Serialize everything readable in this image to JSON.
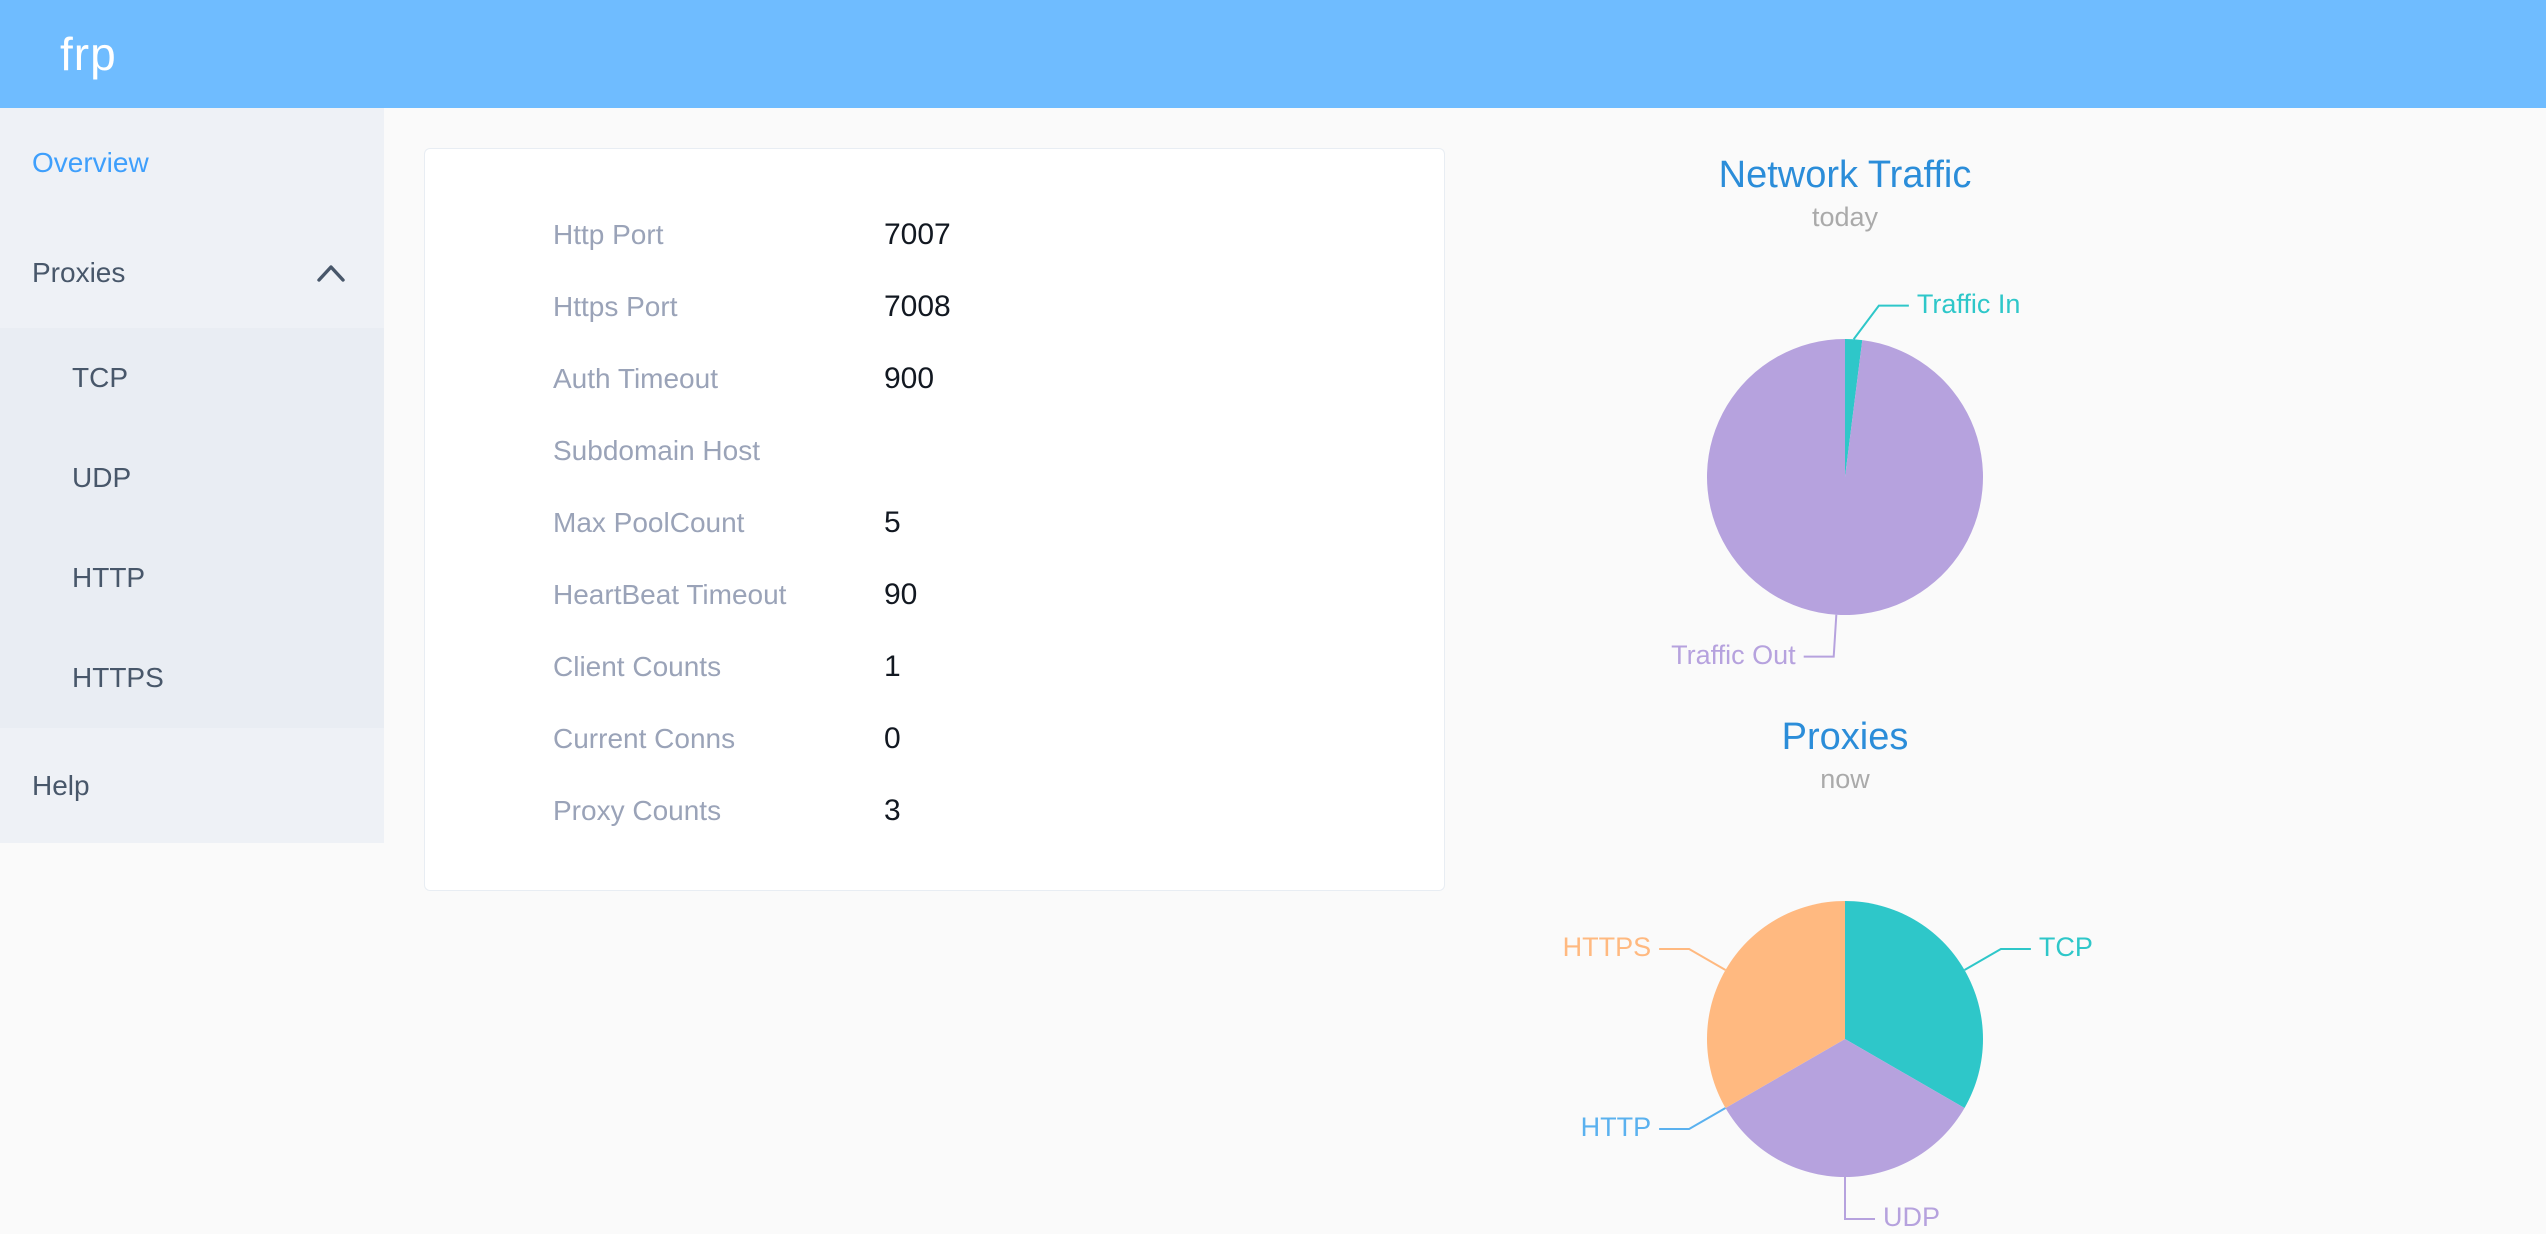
{
  "header": {
    "logo_text": "frp"
  },
  "sidebar": {
    "items": [
      {
        "id": "overview",
        "label": "Overview",
        "active": true
      },
      {
        "id": "proxies",
        "label": "Proxies",
        "expanded": true
      },
      {
        "id": "tcp",
        "label": "TCP"
      },
      {
        "id": "udp",
        "label": "UDP"
      },
      {
        "id": "http",
        "label": "HTTP"
      },
      {
        "id": "https",
        "label": "HTTPS"
      },
      {
        "id": "help",
        "label": "Help"
      }
    ]
  },
  "overview_panel": {
    "rows": [
      {
        "label": "Http Port",
        "value": "7007"
      },
      {
        "label": "Https Port",
        "value": "7008"
      },
      {
        "label": "Auth Timeout",
        "value": "900"
      },
      {
        "label": "Subdomain Host",
        "value": ""
      },
      {
        "label": "Max PoolCount",
        "value": "5"
      },
      {
        "label": "HeartBeat Timeout",
        "value": "90"
      },
      {
        "label": "Client Counts",
        "value": "1"
      },
      {
        "label": "Current Conns",
        "value": "0"
      },
      {
        "label": "Proxy Counts",
        "value": "3"
      }
    ]
  },
  "colors": {
    "header_bg": "#6fbcff",
    "sidebar_bg": "#eef1f6",
    "submenu_bg": "#e9edf3",
    "active_link": "#3e9ffc",
    "menu_text": "#48576a",
    "chart_title": "#2b8dd9",
    "chart_subtitle": "#aaaaaa"
  },
  "chart_data": [
    {
      "type": "pie",
      "title": "Network Traffic",
      "subtitle": "today",
      "legend_position": "callout-labels",
      "slices": [
        {
          "name": "Traffic In",
          "value": 2,
          "color": "#2ec7c9"
        },
        {
          "name": "Traffic Out",
          "value": 98,
          "color": "#b6a2de"
        }
      ]
    },
    {
      "type": "pie",
      "title": "Proxies",
      "subtitle": "now",
      "legend_position": "callout-labels",
      "slices": [
        {
          "name": "TCP",
          "value": 1,
          "color": "#2ec7c9"
        },
        {
          "name": "UDP",
          "value": 1,
          "color": "#b6a2de"
        },
        {
          "name": "HTTP",
          "value": 0,
          "color": "#5ab1ef"
        },
        {
          "name": "HTTPS",
          "value": 1,
          "color": "#ffb980"
        }
      ]
    }
  ]
}
